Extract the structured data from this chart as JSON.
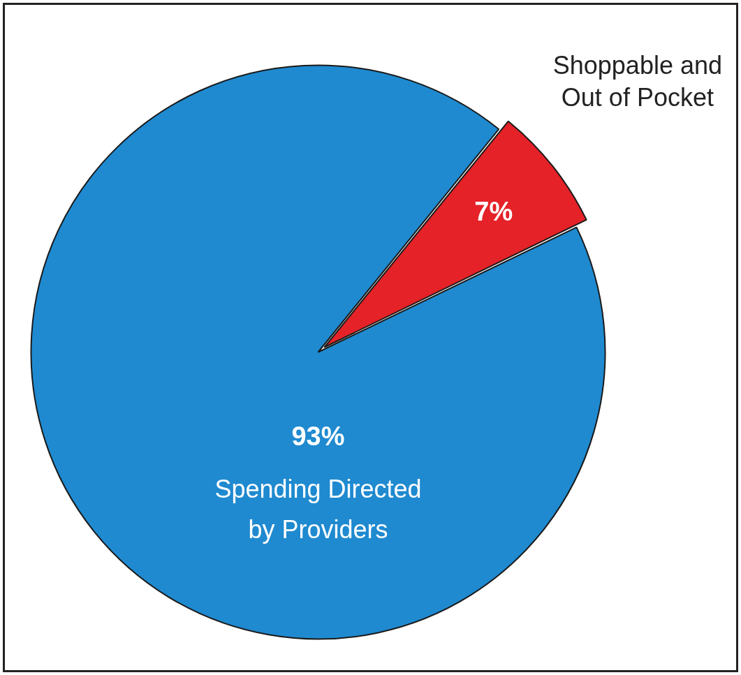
{
  "chart_data": {
    "type": "pie",
    "categories": [
      "Shoppable and Out of Pocket",
      "Spending Directed by Providers"
    ],
    "values": [
      7,
      93
    ],
    "colors": [
      "#e42228",
      "#1f8ad0"
    ],
    "value_labels": [
      "7%",
      "93%"
    ],
    "legend": false
  }
}
